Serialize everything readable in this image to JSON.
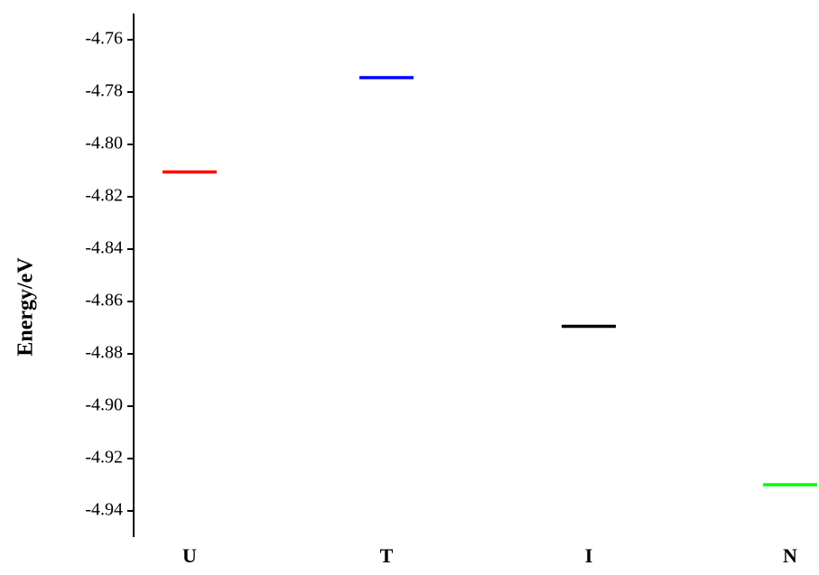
{
  "chart_data": {
    "type": "level",
    "y_label": "Energy/eV",
    "categories": [
      "U",
      "T",
      "I",
      "N"
    ],
    "values": [
      -4.8105,
      -4.7745,
      -4.8695,
      -4.93
    ],
    "colors": [
      "#ff0000",
      "#0000ff",
      "#000000",
      "#00ff00"
    ],
    "ylim": [
      -4.95,
      -4.75
    ],
    "yticks": [
      -4.76,
      -4.78,
      {
        "value": -4.8,
        "label": "-4.80"
      },
      -4.82,
      -4.84,
      -4.86,
      -4.88,
      {
        "value": -4.9,
        "label": "-4.90"
      },
      -4.92,
      -4.94
    ]
  }
}
